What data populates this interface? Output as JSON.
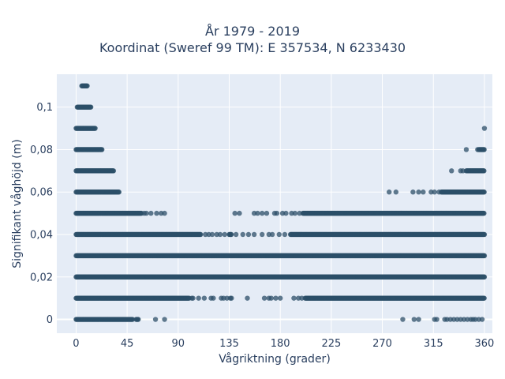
{
  "chart_data": {
    "type": "scatter",
    "title": "År 1979 - 2019",
    "subtitle": "Koordinat (Sweref 99 TM): E 357534, N 6233430",
    "xlabel": "Vågriktning (grader)",
    "ylabel": "Signifikant våghöjd (m)",
    "xlim": [
      -17,
      367
    ],
    "ylim": [
      -0.0065,
      0.1155
    ],
    "x_ticks": [
      0,
      45,
      90,
      135,
      180,
      225,
      270,
      315,
      360
    ],
    "x_tick_labels": [
      "0",
      "45",
      "90",
      "135",
      "180",
      "225",
      "270",
      "315",
      "360"
    ],
    "y_ticks": [
      0,
      0.02,
      0.04,
      0.06,
      0.08,
      0.1
    ],
    "y_tick_labels": [
      "0",
      "0,02",
      "0,04",
      "0,06",
      "0,08",
      "0,1"
    ],
    "grid": true,
    "legend": "none",
    "marker_color": "#2c4f68",
    "series": [
      {
        "bands": [
          {
            "y": 0.0,
            "x_ranges": [
              [
                0,
                50
              ],
              [
                53,
                55
              ]
            ],
            "x_points": [
              70,
              78,
              288,
              298,
              302,
              316,
              318,
              325,
              327,
              330,
              333,
              336,
              339,
              342,
              345,
              348,
              350,
              352,
              355,
              358
            ]
          },
          {
            "y": 0.01,
            "x_ranges": [
              [
                0,
                100
              ],
              [
                202,
                360
              ]
            ],
            "x_points": [
              102,
              103,
              108,
              113,
              119,
              121,
              128,
              130,
              133,
              136,
              137,
              151,
              166,
              170,
              172,
              176,
              180,
              192,
              196,
              199
            ]
          },
          {
            "y": 0.02,
            "x_ranges": [
              [
                0,
                360
              ]
            ],
            "x_points": []
          },
          {
            "y": 0.03,
            "x_ranges": [
              [
                0,
                360
              ]
            ],
            "x_points": []
          },
          {
            "y": 0.04,
            "x_ranges": [
              [
                0,
                110
              ],
              [
                135,
                137
              ],
              [
                189,
                360
              ]
            ],
            "x_points": [
              114,
              117,
              120,
              124,
              127,
              131,
              141,
              147,
              152,
              157,
              164,
              170,
              173,
              179,
              184
            ]
          },
          {
            "y": 0.05,
            "x_ranges": [
              [
                0,
                58
              ],
              [
                200,
                360
              ]
            ],
            "x_points": [
              60,
              62,
              66,
              71,
              75,
              78,
              140,
              144,
              157,
              160,
              164,
              168,
              175,
              177,
              182,
              185,
              190,
              193,
              197
            ]
          },
          {
            "y": 0.06,
            "x_ranges": [
              [
                0,
                38
              ],
              [
                322,
                360
              ]
            ],
            "x_points": [
              276,
              282,
              297,
              302,
              306,
              313,
              316,
              320
            ]
          },
          {
            "y": 0.07,
            "x_ranges": [
              [
                0,
                33
              ],
              [
                344,
                360
              ]
            ],
            "x_points": [
              331,
              339,
              341
            ]
          },
          {
            "y": 0.08,
            "x_ranges": [
              [
                0,
                23
              ],
              [
                355,
                360
              ]
            ],
            "x_points": [
              344,
              354
            ]
          },
          {
            "y": 0.09,
            "x_ranges": [
              [
                0,
                17
              ]
            ],
            "x_points": [
              360
            ]
          },
          {
            "y": 0.1,
            "x_ranges": [
              [
                1,
                13
              ]
            ],
            "x_points": []
          },
          {
            "y": 0.11,
            "x_ranges": [
              [
                5,
                10
              ]
            ],
            "x_points": []
          }
        ]
      }
    ]
  }
}
